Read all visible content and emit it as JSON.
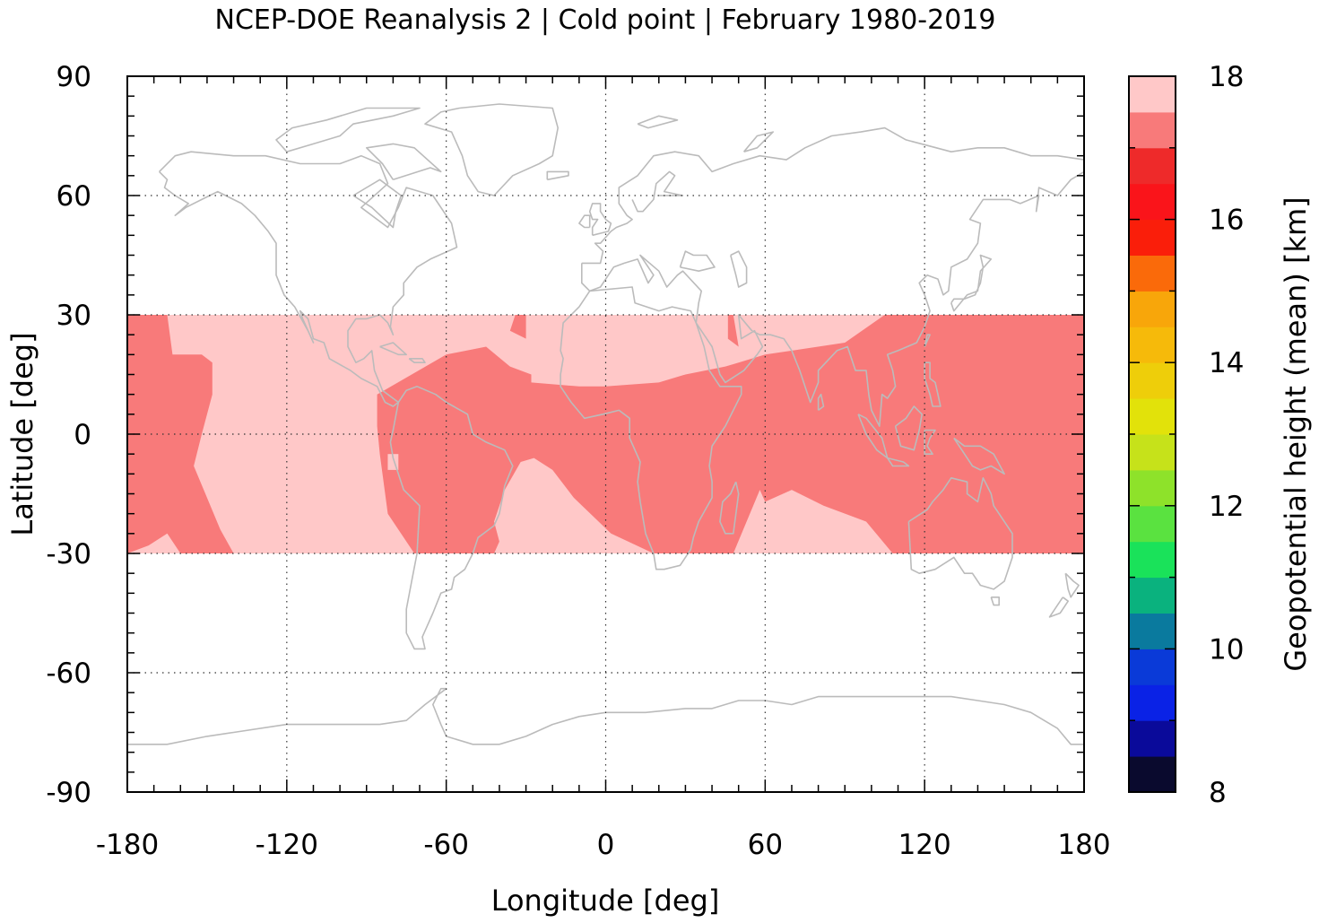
{
  "chart_data": {
    "type": "heatmap",
    "title": "NCEP-DOE Reanalysis 2 | Cold point | February 1980-2019",
    "xlabel": "Longitude [deg]",
    "ylabel": "Latitude [deg]",
    "xlim": [
      -180,
      180
    ],
    "ylim": [
      -90,
      90
    ],
    "xticks": [
      -180,
      -120,
      -60,
      0,
      60,
      120,
      180
    ],
    "yticks": [
      90,
      60,
      30,
      0,
      -30,
      -60,
      -90
    ],
    "grid": true,
    "data_extent": {
      "lat": [
        -30,
        30
      ],
      "lon": [
        -180,
        180
      ]
    },
    "colorbar": {
      "label": "Geopotential height (mean) [km]",
      "range": [
        8,
        18
      ],
      "step": 0.5,
      "ticks": [
        8,
        10,
        12,
        14,
        16,
        18
      ],
      "colors": [
        "#0a0a2e",
        "#0a0a9a",
        "#0a22e6",
        "#0a3ad8",
        "#0a7a9e",
        "#0ab27e",
        "#1ae25a",
        "#5ae240",
        "#8ee22a",
        "#c6e21a",
        "#e2e20a",
        "#eece0a",
        "#f6ba0a",
        "#f8a60a",
        "#fa6a0a",
        "#fa1e0a",
        "#fa141a",
        "#ee2a2a",
        "#f87a7a",
        "#ffc8c8"
      ]
    },
    "field": {
      "description_levels": {
        "high": 17.75,
        "mid": 17.25
      },
      "high_color": "#ffc8c8",
      "mid_color": "#f87a7a"
    },
    "coastline_color": "#bbbbbb"
  }
}
